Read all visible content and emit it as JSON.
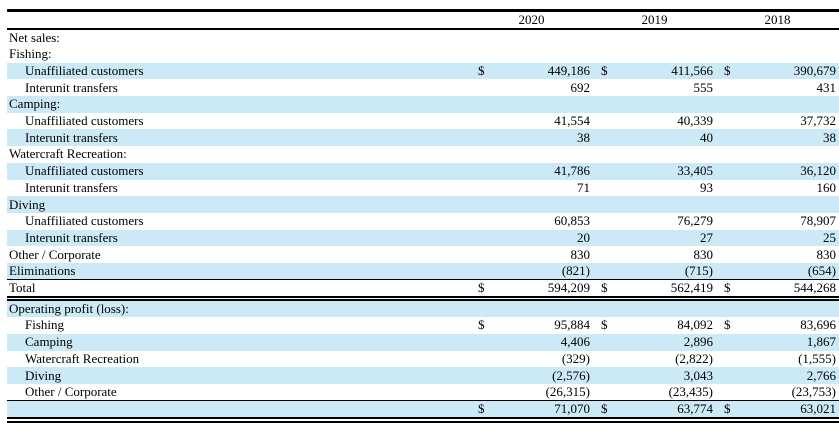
{
  "colors": {
    "row_highlight": "#cce9f8",
    "rule": "#000000",
    "background": "#ffffff"
  },
  "table": {
    "currency_symbol": "$",
    "year_headers": [
      "2020",
      "2019",
      "2018"
    ],
    "rows": [
      {
        "label": "Net sales:",
        "indent": 0,
        "shaded": false,
        "dollar": false,
        "values": [
          "",
          "",
          ""
        ]
      },
      {
        "label": "Fishing:",
        "indent": 0,
        "shaded": false,
        "dollar": false,
        "values": [
          "",
          "",
          ""
        ]
      },
      {
        "label": "Unaffiliated customers",
        "indent": 1,
        "shaded": true,
        "dollar": true,
        "values": [
          "449,186",
          "411,566",
          "390,679"
        ]
      },
      {
        "label": "Interunit transfers",
        "indent": 1,
        "shaded": false,
        "dollar": false,
        "values": [
          "692",
          "555",
          "431"
        ]
      },
      {
        "label": "Camping:",
        "indent": 0,
        "shaded": true,
        "dollar": false,
        "values": [
          "",
          "",
          ""
        ]
      },
      {
        "label": "Unaffiliated customers",
        "indent": 1,
        "shaded": false,
        "dollar": false,
        "values": [
          "41,554",
          "40,339",
          "37,732"
        ]
      },
      {
        "label": "Interunit transfers",
        "indent": 1,
        "shaded": true,
        "dollar": false,
        "values": [
          "38",
          "40",
          "38"
        ]
      },
      {
        "label": "Watercraft Recreation:",
        "indent": 0,
        "shaded": false,
        "dollar": false,
        "values": [
          "",
          "",
          ""
        ]
      },
      {
        "label": "Unaffiliated customers",
        "indent": 1,
        "shaded": true,
        "dollar": false,
        "values": [
          "41,786",
          "33,405",
          "36,120"
        ]
      },
      {
        "label": "Interunit transfers",
        "indent": 1,
        "shaded": false,
        "dollar": false,
        "values": [
          "71",
          "93",
          "160"
        ]
      },
      {
        "label": "Diving",
        "indent": 0,
        "shaded": true,
        "dollar": false,
        "values": [
          "",
          "",
          ""
        ]
      },
      {
        "label": "Unaffiliated customers",
        "indent": 1,
        "shaded": false,
        "dollar": false,
        "values": [
          "60,853",
          "76,279",
          "78,907"
        ]
      },
      {
        "label": "Interunit transfers",
        "indent": 1,
        "shaded": true,
        "dollar": false,
        "values": [
          "20",
          "27",
          "25"
        ]
      },
      {
        "label": "Other / Corporate",
        "indent": 0,
        "shaded": false,
        "dollar": false,
        "values": [
          "830",
          "830",
          "830"
        ]
      },
      {
        "label": "Eliminations",
        "indent": 0,
        "shaded": true,
        "dollar": false,
        "values": [
          "(821)",
          "(715)",
          "(654)"
        ],
        "rule": "single"
      },
      {
        "label": "Total",
        "indent": 0,
        "shaded": false,
        "dollar": true,
        "values": [
          "594,209",
          "562,419",
          "544,268"
        ],
        "rule": "double"
      },
      {
        "label": "Operating profit (loss):",
        "indent": 0,
        "shaded": true,
        "dollar": false,
        "values": [
          "",
          "",
          ""
        ]
      },
      {
        "label": "Fishing",
        "indent": 1,
        "shaded": false,
        "dollar": true,
        "values": [
          "95,884",
          "84,092",
          "83,696"
        ]
      },
      {
        "label": "Camping",
        "indent": 1,
        "shaded": true,
        "dollar": false,
        "values": [
          "4,406",
          "2,896",
          "1,867"
        ]
      },
      {
        "label": "Watercraft Recreation",
        "indent": 1,
        "shaded": false,
        "dollar": false,
        "values": [
          "(329)",
          "(2,822)",
          "(1,555)"
        ]
      },
      {
        "label": "Diving",
        "indent": 1,
        "shaded": true,
        "dollar": false,
        "values": [
          "(2,576)",
          "3,043",
          "2,766"
        ]
      },
      {
        "label": "Other / Corporate",
        "indent": 1,
        "shaded": false,
        "dollar": false,
        "values": [
          "(26,315)",
          "(23,435)",
          "(23,753)"
        ],
        "rule": "single"
      },
      {
        "label": "",
        "indent": 0,
        "shaded": true,
        "dollar": true,
        "values": [
          "71,070",
          "63,774",
          "63,021"
        ],
        "rule": "double-heavy"
      }
    ]
  }
}
